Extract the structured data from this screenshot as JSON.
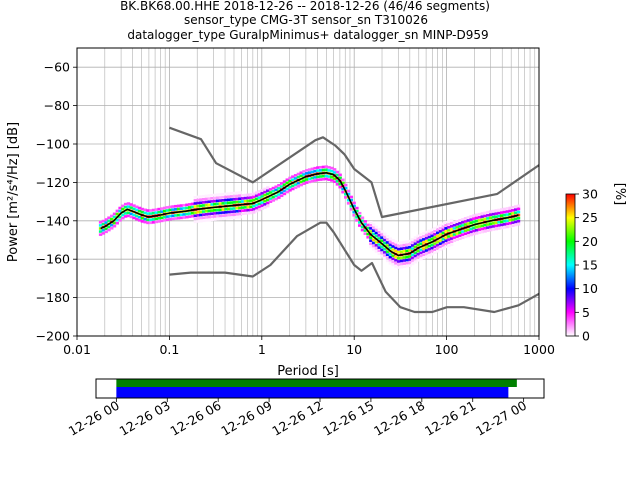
{
  "chart_data": {
    "type": "heatmap",
    "title_lines": [
      "BK.BK68.00.HHE   2018-12-26 -- 2018-12-26  (46/46 segments)",
      "sensor_type CMG-3T sensor_sn T310026",
      "datalogger_type GuralpMinimus+ datalogger_sn MINP-D959"
    ],
    "xlabel": "Period [s]",
    "ylabel": "Power [m²/s⁴/Hz] [dB]",
    "x_scale": "log",
    "xlim": [
      0.01,
      1000
    ],
    "ylim": [
      -200,
      -50
    ],
    "x_ticks": [
      {
        "v": 0.01,
        "label": "0.01"
      },
      {
        "v": 0.1,
        "label": "0.1"
      },
      {
        "v": 1,
        "label": "1"
      },
      {
        "v": 10,
        "label": "10"
      },
      {
        "v": 100,
        "label": "100"
      },
      {
        "v": 1000,
        "label": "1000"
      }
    ],
    "y_ticks": [
      {
        "v": -60,
        "label": "−60"
      },
      {
        "v": -80,
        "label": "−80"
      },
      {
        "v": -100,
        "label": "−100"
      },
      {
        "v": -120,
        "label": "−120"
      },
      {
        "v": -140,
        "label": "−140"
      },
      {
        "v": -160,
        "label": "−160"
      },
      {
        "v": -180,
        "label": "−180"
      },
      {
        "v": -200,
        "label": "−200"
      }
    ],
    "grid": true,
    "mean_psd": [
      [
        0.018,
        -144
      ],
      [
        0.02,
        -143
      ],
      [
        0.025,
        -140
      ],
      [
        0.03,
        -136
      ],
      [
        0.035,
        -134
      ],
      [
        0.04,
        -135
      ],
      [
        0.05,
        -137
      ],
      [
        0.06,
        -138
      ],
      [
        0.08,
        -137
      ],
      [
        0.1,
        -136
      ],
      [
        0.15,
        -135
      ],
      [
        0.2,
        -134
      ],
      [
        0.3,
        -133
      ],
      [
        0.5,
        -132
      ],
      [
        0.8,
        -131
      ],
      [
        1,
        -129
      ],
      [
        1.5,
        -125
      ],
      [
        2,
        -121
      ],
      [
        3,
        -117
      ],
      [
        4,
        -115.5
      ],
      [
        5,
        -115
      ],
      [
        6,
        -116
      ],
      [
        7,
        -119
      ],
      [
        8,
        -124
      ],
      [
        10,
        -134
      ],
      [
        12,
        -141
      ],
      [
        15,
        -147
      ],
      [
        20,
        -152
      ],
      [
        25,
        -156
      ],
      [
        30,
        -158
      ],
      [
        40,
        -157
      ],
      [
        50,
        -154
      ],
      [
        70,
        -151
      ],
      [
        100,
        -147
      ],
      [
        150,
        -144
      ],
      [
        200,
        -142
      ],
      [
        300,
        -140
      ],
      [
        500,
        -138
      ],
      [
        600,
        -137
      ]
    ],
    "nhnm": [
      [
        0.1,
        -91.5
      ],
      [
        0.22,
        -97.5
      ],
      [
        0.32,
        -110
      ],
      [
        0.8,
        -120
      ],
      [
        3.8,
        -98
      ],
      [
        4.6,
        -96.5
      ],
      [
        6.3,
        -101
      ],
      [
        7.9,
        -105.5
      ],
      [
        10,
        -113
      ],
      [
        15.4,
        -120
      ],
      [
        20,
        -138
      ],
      [
        354,
        -126
      ],
      [
        1000,
        -111
      ]
    ],
    "nlnm": [
      [
        0.1,
        -168
      ],
      [
        0.17,
        -167
      ],
      [
        0.4,
        -167
      ],
      [
        0.8,
        -169
      ],
      [
        1.24,
        -163
      ],
      [
        2.4,
        -148
      ],
      [
        4.3,
        -141
      ],
      [
        5,
        -141
      ],
      [
        6,
        -146
      ],
      [
        10,
        -163
      ],
      [
        12,
        -166
      ],
      [
        15.6,
        -162
      ],
      [
        21.9,
        -177
      ],
      [
        31.6,
        -185
      ],
      [
        45,
        -187.5
      ],
      [
        70,
        -187.5
      ],
      [
        101,
        -185
      ],
      [
        154,
        -185
      ],
      [
        328,
        -187.5
      ],
      [
        600,
        -184
      ],
      [
        1000,
        -178
      ]
    ],
    "colorbar": {
      "label": "[%]",
      "min": 0,
      "max": 30,
      "ticks": [
        {
          "v": 0,
          "label": "0"
        },
        {
          "v": 5,
          "label": "5"
        },
        {
          "v": 10,
          "label": "10"
        },
        {
          "v": 15,
          "label": "15"
        },
        {
          "v": 20,
          "label": "20"
        },
        {
          "v": 25,
          "label": "25"
        },
        {
          "v": 30,
          "label": "30"
        }
      ],
      "colors": [
        "#ffffff",
        "#ff00ff",
        "#0000ff",
        "#00ffff",
        "#00ff00",
        "#ffff00",
        "#ff0000"
      ]
    },
    "data_coverage": {
      "tick_labels": [
        "12-26 00",
        "12-26 03",
        "12-26 06",
        "12-26 09",
        "12-26 12",
        "12-26 15",
        "12-26 18",
        "12-26 21",
        "12-27 00"
      ],
      "tick_hours": [
        0,
        3,
        6,
        9,
        12,
        15,
        18,
        21,
        24
      ],
      "xlim_hours": [
        -1.2,
        25.2
      ],
      "bars": [
        {
          "color": "#008000",
          "start_hour": 0,
          "end_hour": 23.6
        },
        {
          "color": "#0000ff",
          "start_hour": 0,
          "end_hour": 23.1
        }
      ]
    }
  }
}
